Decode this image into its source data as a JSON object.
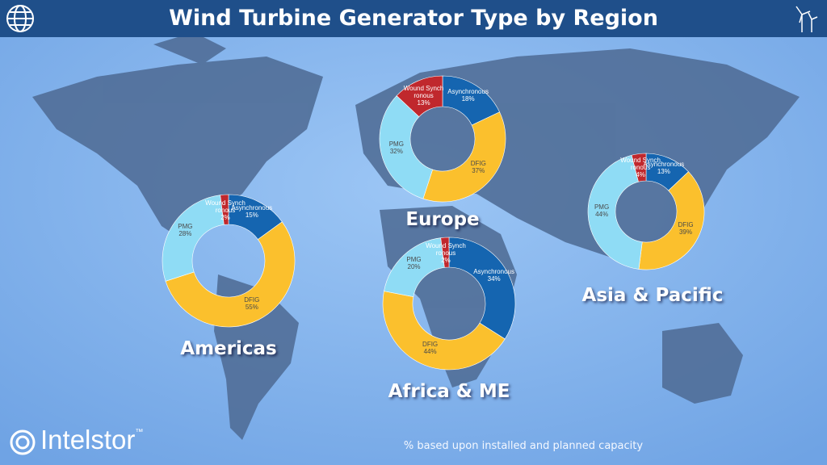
{
  "title": "Wind Turbine Generator Type by Region",
  "footnote": "% based upon installed and planned capacity",
  "logo": "Intelstor",
  "logo_mark": "™",
  "chart_data": [
    {
      "type": "pie",
      "title": "Europe",
      "categories": [
        "Asynchronous",
        "DFIG",
        "PMG",
        "Wound Synchronous"
      ],
      "values": [
        18,
        37,
        32,
        13
      ],
      "value_labels": [
        "18%",
        "37%",
        "32%",
        "13%"
      ],
      "colors": [
        "#1565b0",
        "#fbc02d",
        "#8fdcf5",
        "#c0282d"
      ]
    },
    {
      "type": "pie",
      "title": "Americas",
      "categories": [
        "Asynchronous",
        "DFIG",
        "PMG",
        "Wound Synchronous"
      ],
      "values": [
        15,
        55,
        28,
        2
      ],
      "value_labels": [
        "15%",
        "55%",
        "28%",
        "2%"
      ],
      "colors": [
        "#1565b0",
        "#fbc02d",
        "#8fdcf5",
        "#c0282d"
      ]
    },
    {
      "type": "pie",
      "title": "Africa & ME",
      "categories": [
        "Asynchronous",
        "DFIG",
        "PMG",
        "Wound Synchronous"
      ],
      "values": [
        34,
        44,
        20,
        2
      ],
      "value_labels": [
        "34%",
        "44%",
        "20%",
        "2%"
      ],
      "colors": [
        "#1565b0",
        "#fbc02d",
        "#8fdcf5",
        "#c0282d"
      ]
    },
    {
      "type": "pie",
      "title": "Asia & Pacific",
      "categories": [
        "Asynchronous",
        "DFIG",
        "PMG",
        "Wound Synchronous"
      ],
      "values": [
        13,
        39,
        44,
        4
      ],
      "value_labels": [
        "13%",
        "39%",
        "44%",
        "4%"
      ],
      "colors": [
        "#1565b0",
        "#fbc02d",
        "#8fdcf5",
        "#c0282d"
      ]
    }
  ]
}
